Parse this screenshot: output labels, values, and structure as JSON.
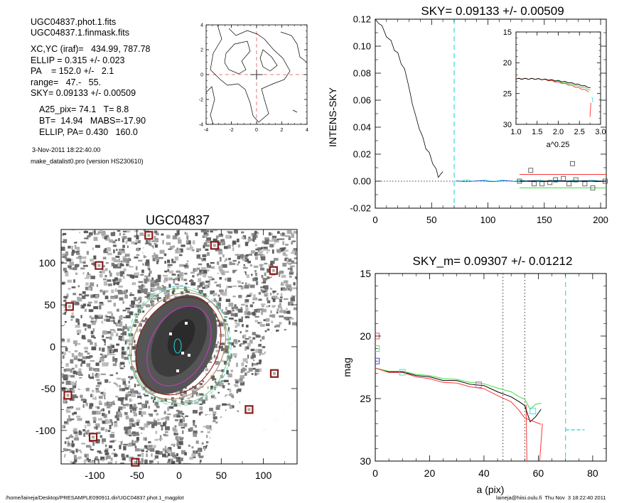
{
  "info": {
    "line1": "UGC04837.phot.1.fits",
    "line2": "UGC04837.1.finmask.fits",
    "xcyc": "XC,YC (iraf)=   434.99, 787.78",
    "ellip": "ELLIP = 0.315 +/- 0.023",
    "pa": "PA    = 152.0 +/-   2.1",
    "range": "range=   47.-   55.",
    "sky": "SKY= 0.09133 +/- 0.00509",
    "a25": "A25_pix= 74.1   T= 8.8",
    "bt": "BT=  14.94   MABS=-17.90",
    "ellip_pa": "ELLIP, PA= 0.430   160.0",
    "date": "3-Nov-2011 18:22:40.00",
    "program": "make_datalist0.pro (version HS230610)"
  },
  "footer": {
    "path": "/home/laineja/Desktop/PRESAMPLE090911.dir/UGC04837.phot.1_magplot",
    "user": "laineja@hiisi.oulu.fi  Thu Nov  3 18:22:40 2011"
  },
  "colors": {
    "cyan": "#33dddd",
    "red": "#ff3333",
    "green": "#44dd44",
    "blue": "#3333cc",
    "magenta": "#cc44cc",
    "dark_red": "#8b1a1a",
    "grey": "#999999"
  },
  "chart_data": [
    {
      "type": "contour",
      "title": "",
      "xlim": [
        -4,
        4
      ],
      "ylim": [
        -4,
        4
      ],
      "xticks": [
        "-4",
        "-2",
        "0",
        "2",
        "4"
      ],
      "yticks": [
        "4",
        "2",
        "0",
        "-2",
        "-4"
      ]
    },
    {
      "type": "line",
      "title": "SKY= 0.09133 +/- 0.00509",
      "xlabel": "",
      "ylabel": "INTENS-SKY",
      "xlim": [
        0,
        205
      ],
      "ylim": [
        -0.02,
        0.12
      ],
      "xticks": [
        "0",
        "50",
        "100",
        "150",
        "200"
      ],
      "yticks": [
        "0.12",
        "0.10",
        "0.08",
        "0.06",
        "0.04",
        "0.02",
        "0.00",
        "-0.02"
      ],
      "cyan_dashed_x": 70,
      "red_level": 0.005,
      "green_level": -0.005,
      "profile": [
        [
          0,
          0.12
        ],
        [
          3,
          0.118
        ],
        [
          6,
          0.114
        ],
        [
          10,
          0.108
        ],
        [
          14,
          0.103
        ],
        [
          17,
          0.098
        ],
        [
          20,
          0.094
        ],
        [
          23,
          0.088
        ],
        [
          26,
          0.082
        ],
        [
          29,
          0.074
        ],
        [
          31,
          0.064
        ],
        [
          33,
          0.058
        ],
        [
          36,
          0.047
        ],
        [
          39,
          0.04
        ],
        [
          42,
          0.032
        ],
        [
          45,
          0.025
        ],
        [
          48,
          0.02
        ],
        [
          51,
          0.014
        ],
        [
          54,
          0.008
        ],
        [
          56,
          0.004
        ],
        [
          58,
          0.004
        ],
        [
          60,
          0.007
        ]
      ],
      "sky_boxes": [
        [
          128,
          0.0
        ],
        [
          138,
          0.008
        ],
        [
          141,
          -0.002
        ],
        [
          148,
          -0.002
        ],
        [
          155,
          -0.001
        ],
        [
          160,
          0.001
        ],
        [
          167,
          0.002
        ],
        [
          172,
          -0.002
        ],
        [
          175,
          0.013
        ],
        [
          178,
          0.001
        ],
        [
          186,
          -0.002
        ],
        [
          193,
          -0.005
        ],
        [
          204,
          0.0
        ]
      ],
      "inset": {
        "xlabel": "a^0.25",
        "xlim": [
          1.0,
          3.0
        ],
        "ylim": [
          15,
          30
        ],
        "xticks": [
          "1.0",
          "1.5",
          "2.0",
          "2.5",
          "3.0"
        ],
        "yticks": [
          "15",
          "20",
          "25",
          "30"
        ]
      }
    },
    {
      "type": "image",
      "title": "UGC04837",
      "xlim": [
        -140,
        140
      ],
      "ylim": [
        -140,
        140
      ],
      "xticks": [
        "-100",
        "-50",
        "0",
        "50",
        "100"
      ],
      "yticks": [
        "100",
        "50",
        "0",
        "-50",
        "-100"
      ],
      "star_marks": [
        [
          -36,
          133
        ],
        [
          42,
          121
        ],
        [
          -95,
          97
        ],
        [
          112,
          91
        ],
        [
          -130,
          48
        ],
        [
          113,
          -32
        ],
        [
          -132,
          -58
        ],
        [
          83,
          -75
        ],
        [
          -102,
          -108
        ],
        [
          -52,
          -138
        ]
      ]
    },
    {
      "type": "line",
      "title": "SKY_m=  0.09307 +/- 0.01212",
      "xlabel": "a (pix)",
      "ylabel": "mag",
      "xlim": [
        0,
        85
      ],
      "ylim": [
        30,
        15
      ],
      "xticks": [
        "0",
        "20",
        "40",
        "60",
        "80"
      ],
      "yticks": [
        "15",
        "20",
        "25",
        "30"
      ],
      "vlines_dotted": [
        47,
        55
      ],
      "cyan_dashed_x": 70,
      "cyan_level": 27.5,
      "series": [
        {
          "color": "black",
          "values": [
            [
              0,
              22.6
            ],
            [
              5,
              22.8
            ],
            [
              10,
              22.9
            ],
            [
              15,
              23.1
            ],
            [
              20,
              23.3
            ],
            [
              25,
              23.5
            ],
            [
              30,
              23.6
            ],
            [
              35,
              23.8
            ],
            [
              40,
              24.0
            ],
            [
              45,
              24.4
            ],
            [
              50,
              24.9
            ],
            [
              53,
              25.2
            ],
            [
              55,
              25.6
            ],
            [
              57,
              26.8
            ],
            [
              59,
              26.5
            ],
            [
              61,
              25.8
            ]
          ]
        },
        {
          "color": "green",
          "values": [
            [
              0,
              22.6
            ],
            [
              5,
              22.75
            ],
            [
              10,
              22.85
            ],
            [
              15,
              23.0
            ],
            [
              20,
              23.2
            ],
            [
              25,
              23.35
            ],
            [
              30,
              23.5
            ],
            [
              35,
              23.65
            ],
            [
              40,
              23.85
            ],
            [
              45,
              24.1
            ],
            [
              50,
              24.5
            ],
            [
              53,
              24.8
            ],
            [
              55,
              25.1
            ],
            [
              57,
              25.8
            ],
            [
              59,
              25.5
            ],
            [
              61,
              25.3
            ]
          ]
        },
        {
          "color": "red",
          "values": [
            [
              0,
              22.6
            ],
            [
              5,
              22.85
            ],
            [
              10,
              22.95
            ],
            [
              15,
              23.2
            ],
            [
              20,
              23.45
            ],
            [
              25,
              23.65
            ],
            [
              30,
              23.8
            ],
            [
              35,
              24.0
            ],
            [
              40,
              24.25
            ],
            [
              45,
              24.7
            ],
            [
              50,
              25.3
            ],
            [
              53,
              25.9
            ],
            [
              55,
              26.6
            ],
            [
              56,
              30
            ],
            [
              60,
              30
            ],
            [
              61,
              27.0
            ]
          ]
        }
      ],
      "markers": [
        {
          "color": "red",
          "x": 0.4,
          "y": 20.0
        },
        {
          "color": "green",
          "x": 0.4,
          "y": 21.0
        },
        {
          "color": "blue",
          "x": 0.4,
          "y": 22.0
        },
        {
          "color": "cyan",
          "x": 10,
          "y": 22.9
        },
        {
          "color": "magenta",
          "x": 38,
          "y": 23.9
        },
        {
          "color": "cyan",
          "x": 58,
          "y": 26.0
        }
      ]
    }
  ]
}
